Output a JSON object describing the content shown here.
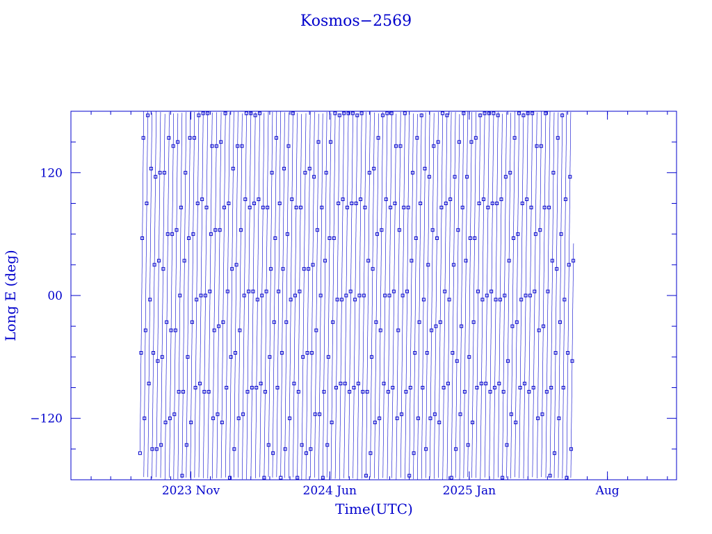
{
  "chart_data": {
    "type": "line",
    "title": "Kosmos−2569",
    "xlabel": "Time(UTC)",
    "ylabel": "Long E (deg)",
    "ylim": [
      -180,
      180
    ],
    "xlim": [
      "2023-05-01",
      "2025-11-15"
    ],
    "x_tick_labels": [
      {
        "label": "2023 Nov",
        "date": "2023-11-01"
      },
      {
        "label": "2024 Jun",
        "date": "2024-06-01"
      },
      {
        "label": "2025 Jan",
        "date": "2025-01-01"
      },
      {
        "label": "Aug",
        "date": "2025-08-01"
      }
    ],
    "y_ticks": [
      {
        "label": "−120",
        "value": -120
      },
      {
        "label": "00",
        "value": 0
      },
      {
        "label": "120",
        "value": 120
      }
    ],
    "series": [
      {
        "x_start": "2023-08-15",
        "x_end": "2025-06-10",
        "y_start": -152,
        "y_end": 30,
        "drift_deg_per_day": 55,
        "markers": "squares"
      }
    ],
    "grid": false,
    "legend": "none",
    "colors": {
      "line": "#0000cc",
      "axis": "#0000cc",
      "text": "#0000cc"
    }
  }
}
